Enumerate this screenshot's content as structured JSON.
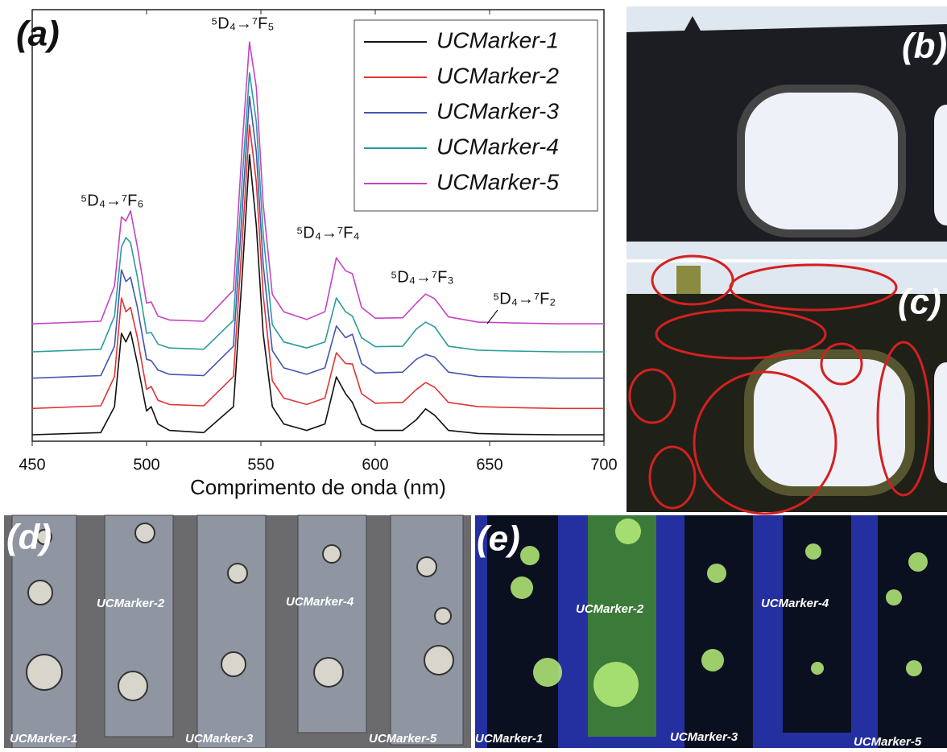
{
  "chart_data": {
    "type": "line",
    "panel_label": "(a)",
    "x_label": "Comprimento de onda (nm)",
    "xlim": [
      450,
      700
    ],
    "xticks": [
      450,
      500,
      550,
      600,
      650,
      700
    ],
    "ylim": [
      0,
      100
    ],
    "legend": "top-right",
    "annotations": [
      "⁵D₄→⁷F₆",
      "⁵D₄→⁷F₅",
      "⁵D₄→⁷F₄",
      "⁵D₄→⁷F₃",
      "⁵D₄→⁷F₂"
    ],
    "x": [
      450,
      480,
      486,
      489,
      491,
      493,
      496,
      500,
      502,
      505,
      510,
      525,
      538,
      542,
      545,
      548,
      551,
      555,
      560,
      570,
      578,
      583,
      587,
      590,
      594,
      600,
      612,
      618,
      622,
      626,
      632,
      645,
      660,
      680,
      700
    ],
    "series": [
      {
        "name": "UCMarker-1",
        "color": "#111111",
        "values": [
          1.5,
          2,
          8,
          25,
          23,
          25.4,
          18,
          7,
          8,
          4,
          2.5,
          2,
          8,
          40,
          66.4,
          50,
          25,
          8,
          4,
          2.5,
          4,
          14.9,
          11,
          9,
          4,
          2.5,
          2.5,
          5,
          7.5,
          6,
          2.5,
          1.8,
          1.6,
          1.5,
          1.5
        ]
      },
      {
        "name": "UCMarker-2",
        "color": "#e03434",
        "values": [
          7.6,
          8.2,
          15,
          33.2,
          30,
          31,
          24,
          12,
          12.7,
          9.5,
          8.5,
          8.2,
          15,
          48,
          73.3,
          60,
          34,
          14,
          10,
          8.5,
          10,
          20.5,
          18,
          17.9,
          11,
          8.8,
          9,
          12,
          13.6,
          12.5,
          9,
          8,
          7.8,
          7.6,
          7.6
        ]
      },
      {
        "name": "UCMarker-3",
        "color": "#4455b0",
        "values": [
          14.6,
          15.2,
          22,
          39.7,
          37,
          38,
          31,
          19,
          18.7,
          16.5,
          15.5,
          15.2,
          22,
          55,
          79.9,
          67,
          41,
          21,
          17,
          15.5,
          17,
          26.7,
          24,
          24.8,
          18,
          15.8,
          16,
          19,
          20.1,
          19.5,
          16,
          15,
          14.8,
          14.6,
          14.6
        ]
      },
      {
        "name": "UCMarker-4",
        "color": "#2b9c9c",
        "values": [
          20.7,
          21.3,
          29,
          45,
          47.2,
          46,
          38,
          25,
          25.2,
          22.5,
          21.6,
          21.3,
          28,
          62,
          85.4,
          74,
          48,
          27,
          23,
          21.6,
          23,
          33.2,
          30,
          29,
          24,
          21.9,
          22,
          26,
          27.6,
          26.5,
          22,
          21.1,
          20.9,
          20.7,
          20.7
        ]
      },
      {
        "name": "UCMarker-5",
        "color": "#c444c4",
        "values": [
          27.2,
          27.8,
          36,
          52,
          51,
          53.4,
          45,
          32,
          32.3,
          29,
          28.1,
          27.8,
          35,
          70,
          92.5,
          82,
          55,
          34,
          30,
          28.2,
          30,
          42.5,
          39.5,
          38.8,
          31,
          28.5,
          28.6,
          32,
          34.1,
          33,
          28.8,
          27.6,
          27.4,
          27.2,
          27.2
        ]
      }
    ]
  },
  "photos": {
    "b": {
      "label": "(b)"
    },
    "c": {
      "label": "(c)"
    },
    "d": {
      "label": "(d)",
      "strip_labels": [
        "UCMarker-1",
        "UCMarker-2",
        "UCMarker-3",
        "UCMarker-4",
        "UCMarker-5"
      ]
    },
    "e": {
      "label": "(e)",
      "strip_labels": [
        "UCMarker-1",
        "UCMarker-2",
        "UCMarker-3",
        "UCMarker-4",
        "UCMarker-5"
      ]
    }
  }
}
